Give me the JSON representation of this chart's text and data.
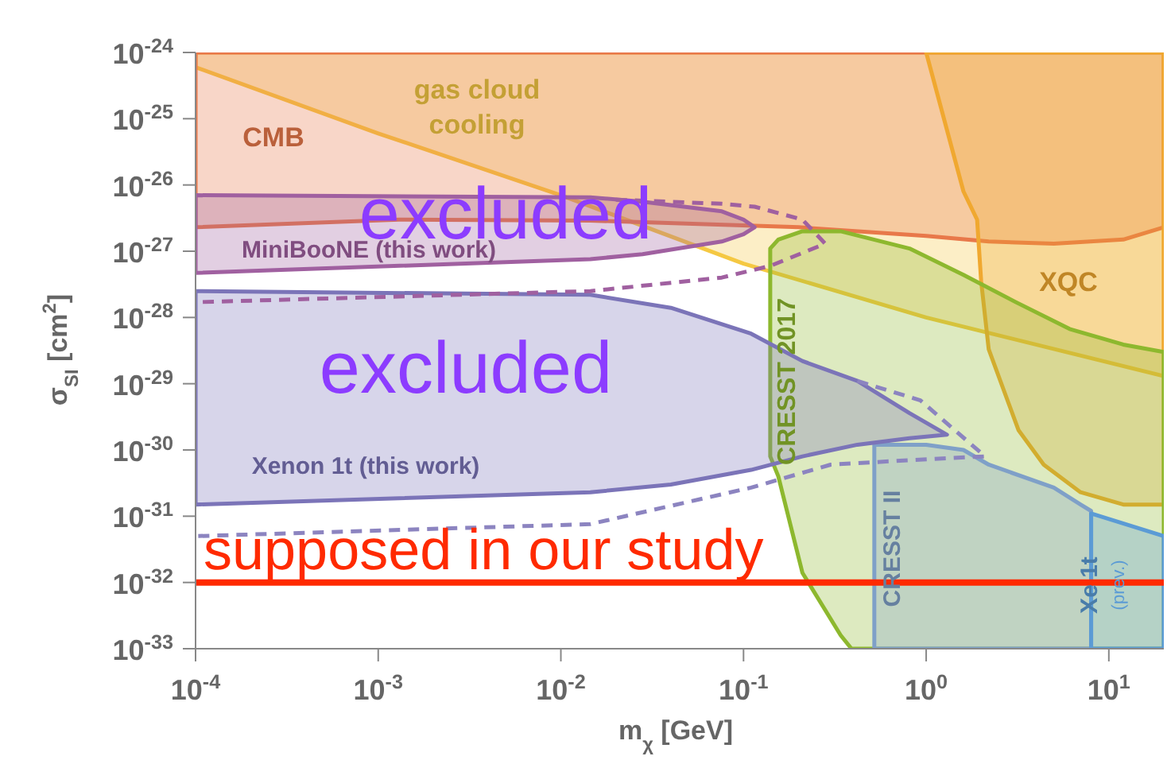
{
  "chart_data": {
    "type": "area",
    "xlabel": "m$_{χ}$ [GeV]",
    "ylabel": "σ$_{SI}$ [cm$^{2}$]",
    "log": "xy",
    "xlim": [
      0.0001,
      20
    ],
    "ylim": [
      1e-33,
      1e-24
    ],
    "xticks": [
      {
        "value": 0.0001,
        "label": "10$^{-4}$"
      },
      {
        "value": 0.001,
        "label": "10$^{-3}$"
      },
      {
        "value": 0.01,
        "label": "10$^{-2}$"
      },
      {
        "value": 0.1,
        "label": "10$^{-1}$"
      },
      {
        "value": 1,
        "label": "10$^{0}$"
      },
      {
        "value": 10,
        "label": "10$^{1}$"
      }
    ],
    "yticks": [
      {
        "value": 1e-33,
        "label": "10$^{-33}$"
      },
      {
        "value": 1e-32,
        "label": "10$^{-32}$"
      },
      {
        "value": 1e-31,
        "label": "10$^{-31}$"
      },
      {
        "value": 1e-30,
        "label": "10$^{-30}$"
      },
      {
        "value": 1e-29,
        "label": "10$^{-29}$"
      },
      {
        "value": 1e-28,
        "label": "10$^{-28}$"
      },
      {
        "value": 1e-27,
        "label": "10$^{-27}$"
      },
      {
        "value": 1e-26,
        "label": "10$^{-26}$"
      },
      {
        "value": 1e-25,
        "label": "10$^{-25}$"
      },
      {
        "value": 1e-24,
        "label": "10$^{-24}$"
      }
    ],
    "series": [
      {
        "name": "gas cloud\ncooling",
        "color": "#f5c842",
        "x": [
          0.0001,
          0.0001,
          0.001,
          0.01,
          0.1,
          1,
          20,
          20
        ],
        "values": [
          1e-24,
          6e-25,
          6e-26,
          7e-27,
          6.5e-28,
          1e-28,
          1.3e-29,
          1e-24
        ]
      },
      {
        "name": "CMB",
        "color": "#e8784a",
        "x": [
          0.0001,
          0.0001,
          0.0013,
          0.0145,
          0.2,
          1,
          2.2,
          5,
          12,
          20,
          20
        ],
        "values": [
          1e-24,
          2.3e-27,
          3e-27,
          2.9e-27,
          2.3e-27,
          1.7e-27,
          1.4e-27,
          1.3e-27,
          1.5e-27,
          2.3e-27,
          1e-24
        ]
      },
      {
        "name": "XQC",
        "color": "#f0a830",
        "x": [
          1,
          1.6,
          1.9,
          2,
          2.2,
          3.2,
          4.4,
          7,
          12,
          20,
          20
        ],
        "values": [
          1e-24,
          8e-27,
          3e-27,
          3.5e-28,
          3.3e-29,
          2e-30,
          6e-31,
          2.3e-31,
          1.5e-31,
          1.5e-31,
          1e-24
        ]
      },
      {
        "name": "CRESST 2017",
        "color": "#8db82e",
        "x": [
          0.14,
          0.155,
          0.21,
          0.34,
          0.81,
          1.6,
          3.1,
          6.1,
          12,
          20,
          20,
          0.39,
          0.34,
          0.21,
          0.155,
          0.14
        ],
        "values": [
          1.1e-27,
          1.5e-27,
          2e-27,
          2e-27,
          1.1e-27,
          4.4e-28,
          1.7e-28,
          6.7e-29,
          3.9e-29,
          3e-29,
          1e-33,
          1e-33,
          1.6e-33,
          1.4e-32,
          4e-31,
          8e-31
        ]
      },
      {
        "name": "CRESST II",
        "color": "#7fa0c8",
        "x": [
          0.52,
          0.52,
          1,
          1.6,
          2.2,
          5,
          7,
          8,
          8
        ],
        "values": [
          1e-33,
          1.2e-30,
          1.2e-30,
          1e-30,
          6e-31,
          2.7e-31,
          1.5e-31,
          1.2e-31,
          1e-33
        ]
      },
      {
        "name": "Xe 1t\n(prev.)",
        "color": "#5b9bd5",
        "x": [
          8,
          8,
          20,
          20
        ],
        "values": [
          1e-33,
          1.1e-31,
          5e-32,
          1e-33
        ]
      },
      {
        "name": "MiniBooNE (this work)",
        "color": "#a060a0",
        "x": [
          0.0001,
          0.0145,
          0.028,
          0.076,
          0.1,
          0.115,
          0.1,
          0.076,
          0.028,
          0.0145,
          0.0001
        ],
        "values": [
          7e-27,
          6.5e-27,
          5.6e-27,
          4e-27,
          3e-27,
          2.3e-27,
          1.8e-27,
          1.4e-27,
          9e-28,
          7.6e-28,
          4.7e-28
        ]
      },
      {
        "type": "line",
        "line_style": "dashed",
        "color": "#a060a0",
        "x": [
          0.02,
          0.076,
          0.115,
          0.21,
          0.28,
          0.14,
          0.076,
          0.0145,
          0.0001
        ],
        "values": [
          6e-27,
          5.2e-27,
          4.7e-27,
          3e-27,
          1.3e-27,
          6e-28,
          4e-28,
          2.5e-28,
          1.7e-28
        ]
      },
      {
        "name": "Xenon 1t (this work)",
        "color": "#7b74b8",
        "x": [
          0.0001,
          0.0145,
          0.04,
          0.11,
          0.21,
          0.42,
          0.81,
          1.3,
          0.81,
          0.42,
          0.21,
          0.11,
          0.04,
          0.0145,
          0.0001
        ],
        "values": [
          2.5e-28,
          2.2e-28,
          1.4e-28,
          5.7e-29,
          2.2e-29,
          1.1e-29,
          3.6e-30,
          1.7e-30,
          1.5e-30,
          1.2e-30,
          8e-31,
          5e-31,
          3e-31,
          2.3e-31,
          1.5e-31
        ]
      },
      {
        "type": "line",
        "line_style": "dashed",
        "color": "#8c84c0",
        "x": [
          0.42,
          0.93,
          2.1,
          0.8,
          0.3,
          0.11,
          0.0145,
          0.0001
        ],
        "values": [
          1.1e-29,
          5.6e-30,
          8e-31,
          7e-31,
          6e-31,
          2.7e-31,
          7.6e-32,
          5e-32
        ]
      }
    ],
    "ref_lines": [
      {
        "axis": "y",
        "value": 1e-32,
        "label": "supposed in our study",
        "color": "#ff2a00"
      }
    ],
    "annotations": [
      "excluded",
      "excluded"
    ]
  }
}
